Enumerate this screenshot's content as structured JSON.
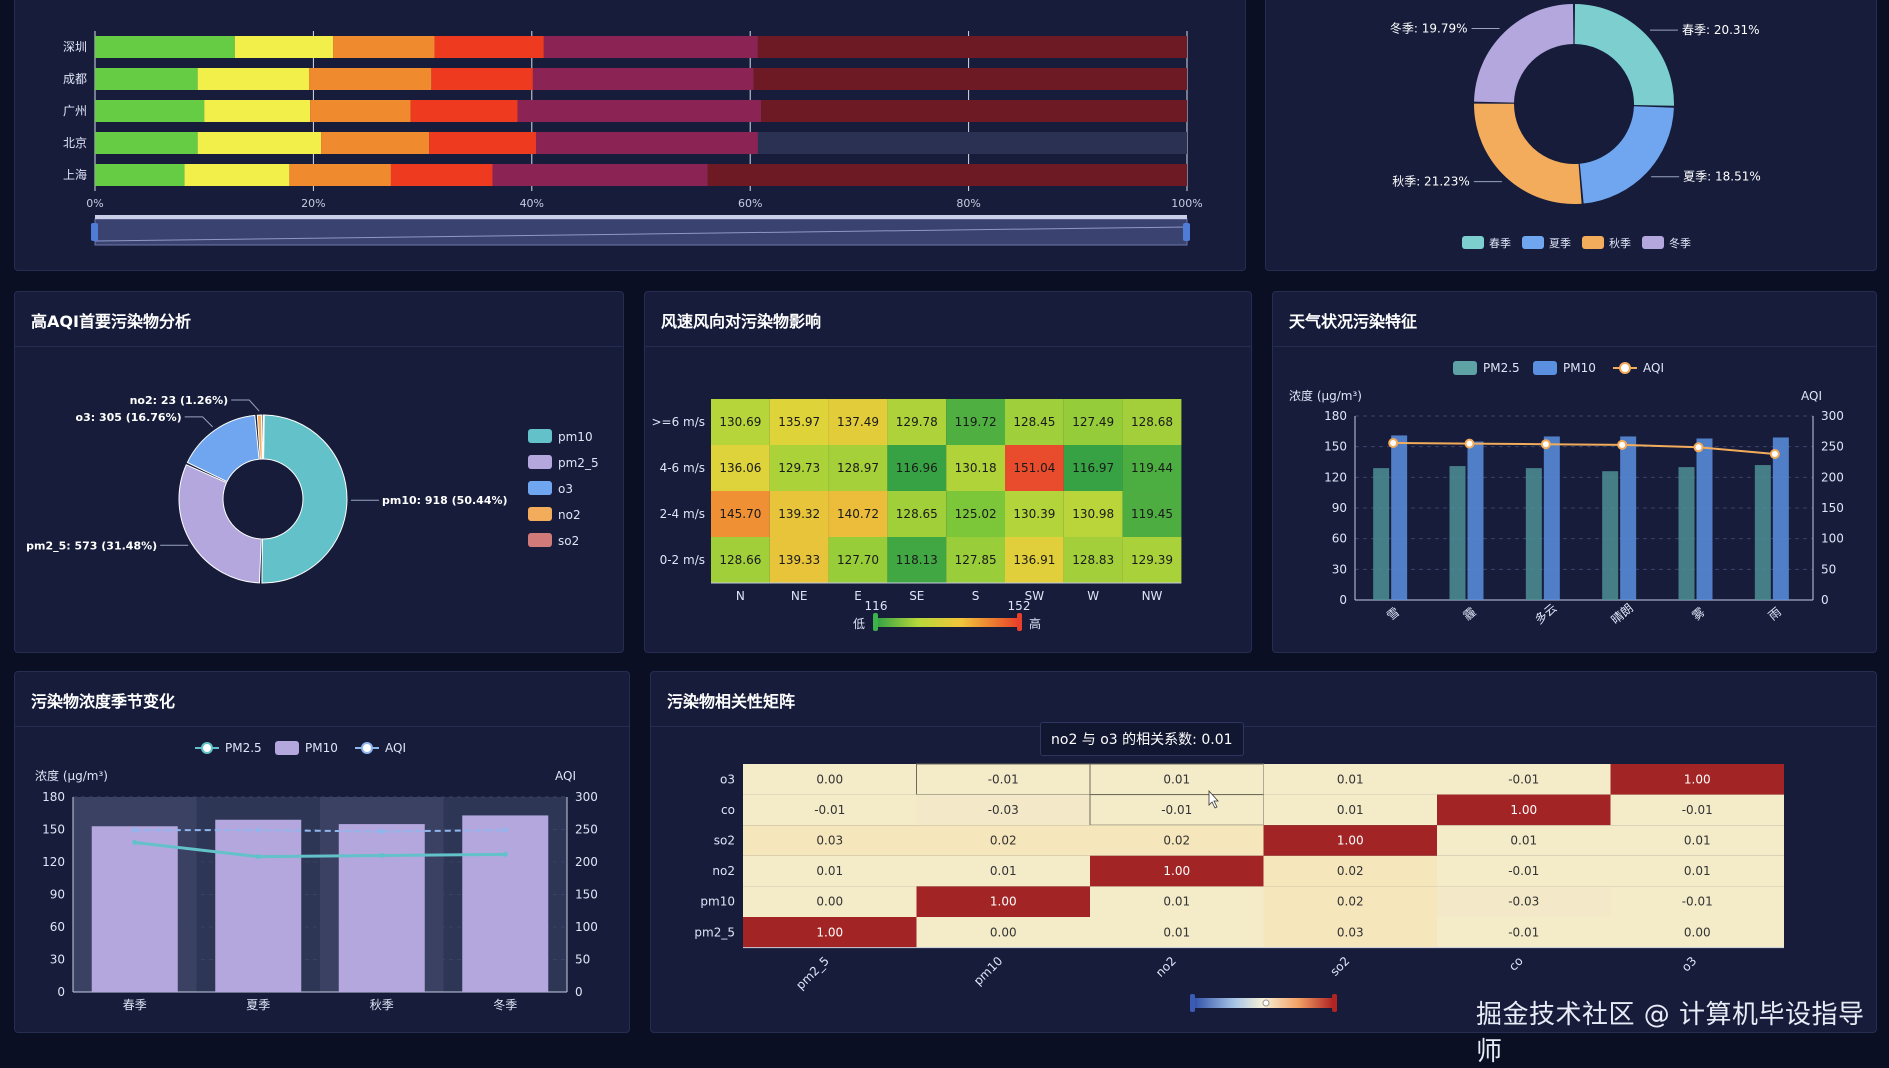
{
  "panels": {
    "aqi_primary": {
      "title": "高AQI首要污染物分析"
    },
    "wind": {
      "title": "风速风向对污染物影响"
    },
    "weather": {
      "title": "天气状况污染特征"
    },
    "seasonal": {
      "title": "污染物浓度季节变化"
    },
    "correlation": {
      "title": "污染物相关性矩阵"
    }
  },
  "city_bars": {
    "cities": [
      "深圳",
      "成都",
      "广州",
      "北京",
      "上海"
    ],
    "x_ticks": [
      "0%",
      "20%",
      "40%",
      "60%",
      "80%",
      "100%"
    ],
    "segment_colors": [
      "#66cc44",
      "#f2ef4b",
      "#ef8a2f",
      "#ee3b1f",
      "#8b2454",
      "#6e1a25"
    ],
    "segments": [
      [
        12.8,
        9.0,
        9.3,
        10.0,
        19.6,
        39.3
      ],
      [
        9.4,
        10.2,
        11.2,
        9.3,
        20.2,
        39.7
      ],
      [
        10.0,
        9.7,
        9.2,
        9.8,
        22.3,
        39.0
      ],
      [
        9.4,
        11.3,
        9.9,
        9.8,
        20.3,
        0
      ],
      [
        8.2,
        9.6,
        9.3,
        9.3,
        19.7,
        43.9
      ]
    ]
  },
  "season_donut": {
    "slices": [
      {
        "name": "春季",
        "label": "春季: 20.31%",
        "value": 20.31,
        "color": "#7dcfcf"
      },
      {
        "name": "夏季",
        "label": "夏季: 18.51%",
        "value": 18.51,
        "color": "#6fa6ef"
      },
      {
        "name": "秋季",
        "label": "秋季: 21.23%",
        "value": 21.23,
        "color": "#f2ac5c"
      },
      {
        "name": "冬季",
        "label": "冬季: 19.79%",
        "value": 19.79,
        "color": "#b3a7de"
      }
    ],
    "legend": [
      "春季",
      "夏季",
      "秋季",
      "冬季"
    ]
  },
  "aqi_donut": {
    "slices": [
      {
        "name": "pm10",
        "label": "pm10: 918 (50.44%)",
        "value": 918,
        "color": "#63c1c9"
      },
      {
        "name": "pm2_5",
        "label": "pm2_5: 573 (31.48%)",
        "value": 573,
        "color": "#b3a7de"
      },
      {
        "name": "o3",
        "label": "o3: 305 (16.76%)",
        "value": 305,
        "color": "#6fa6ef"
      },
      {
        "name": "no2",
        "label": "no2: 23 (1.26%)",
        "value": 23,
        "color": "#f2ac5c"
      },
      {
        "name": "so2",
        "label": "",
        "value": 1,
        "color": "#d17a7a"
      }
    ],
    "legend": [
      "pm10",
      "pm2_5",
      "o3",
      "no2",
      "so2"
    ]
  },
  "wind_heatmap": {
    "rows": [
      ">=6 m/s",
      "4-6 m/s",
      "2-4 m/s",
      "0-2 m/s"
    ],
    "cols": [
      "N",
      "NE",
      "E",
      "SE",
      "S",
      "SW",
      "W",
      "NW"
    ],
    "values": [
      [
        130.69,
        135.97,
        137.49,
        129.78,
        119.72,
        128.45,
        127.49,
        128.68
      ],
      [
        136.06,
        129.73,
        128.97,
        116.96,
        130.18,
        151.04,
        116.97,
        119.44
      ],
      [
        145.7,
        139.32,
        140.72,
        128.65,
        125.02,
        130.39,
        130.98,
        119.45
      ],
      [
        128.66,
        139.33,
        127.7,
        118.13,
        127.85,
        136.91,
        128.83,
        129.39
      ]
    ],
    "visual_min": 116,
    "visual_max": 152,
    "min_label": "116",
    "max_label": "152",
    "low_text": "低",
    "high_text": "高"
  },
  "weather_chart": {
    "legend": [
      "PM2.5",
      "PM10",
      "AQI"
    ],
    "categories": [
      "雪",
      "霾",
      "多云",
      "晴朗",
      "雾",
      "雨"
    ],
    "pm25": [
      129,
      131,
      129,
      126,
      130,
      132
    ],
    "pm10": [
      161,
      155,
      160,
      160,
      158,
      159
    ],
    "aqi": [
      256,
      255,
      254,
      253,
      249,
      238
    ],
    "y_left_label": "浓度 (μg/m³)",
    "y_right_label": "AQI",
    "y_left_ticks": [
      "0",
      "30",
      "60",
      "90",
      "120",
      "150",
      "180"
    ],
    "y_right_ticks": [
      "0",
      "50",
      "100",
      "150",
      "200",
      "250",
      "300"
    ],
    "ylim": [
      0,
      180
    ],
    "y2lim": [
      0,
      300
    ]
  },
  "seasonal_chart": {
    "legend": [
      "PM2.5",
      "PM10",
      "AQI"
    ],
    "categories": [
      "春季",
      "夏季",
      "秋季",
      "冬季"
    ],
    "pm10": [
      153,
      159,
      155,
      163
    ],
    "pm25": [
      138,
      125,
      126,
      127
    ],
    "aqi": [
      249,
      249,
      247,
      249
    ],
    "y_left_label": "浓度 (μg/m³)",
    "y_right_label": "AQI",
    "y_left_ticks": [
      "0",
      "30",
      "60",
      "90",
      "120",
      "150",
      "180"
    ],
    "y_right_ticks": [
      "0",
      "50",
      "100",
      "150",
      "200",
      "250",
      "300"
    ],
    "ylim": [
      0,
      180
    ],
    "y2lim": [
      0,
      300
    ]
  },
  "correlation": {
    "rows": [
      "o3",
      "co",
      "so2",
      "no2",
      "pm10",
      "pm2_5"
    ],
    "cols": [
      "pm2_5",
      "pm10",
      "no2",
      "so2",
      "co",
      "o3"
    ],
    "values": [
      [
        "0.00",
        "-0.01",
        "0.01",
        "0.01",
        "-0.01",
        "1.00"
      ],
      [
        "-0.01",
        "-0.03",
        "-0.01",
        "0.01",
        "1.00",
        "-0.01"
      ],
      [
        "0.03",
        "0.02",
        "0.02",
        "1.00",
        "0.01",
        "0.01"
      ],
      [
        "0.01",
        "0.01",
        "1.00",
        "0.02",
        "-0.01",
        "0.01"
      ],
      [
        "0.00",
        "1.00",
        "0.01",
        "0.02",
        "-0.03",
        "-0.01"
      ],
      [
        "1.00",
        "0.00",
        "0.01",
        "0.03",
        "-0.01",
        "0.00"
      ]
    ],
    "tooltip": "no2 与 o3 的相关系数: 0.01"
  },
  "watermark": "掘金技术社区 @ 计算机毕设指导师"
}
